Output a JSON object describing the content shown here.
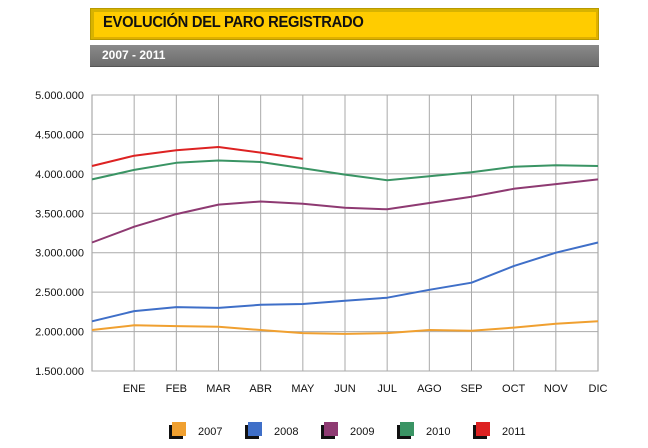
{
  "header": {
    "title": "EVOLUCIÓN DEL PARO REGISTRADO",
    "subtitle": "2007 - 2011"
  },
  "chart_data": {
    "type": "line",
    "title": "EVOLUCIÓN DEL PARO REGISTRADO",
    "subtitle": "2007 - 2011",
    "xlabel": "",
    "ylabel": "",
    "x_positions": 13,
    "categories": [
      "",
      "ENE",
      "FEB",
      "MAR",
      "ABR",
      "MAY",
      "JUN",
      "JUL",
      "AGO",
      "SEP",
      "OCT",
      "NOV",
      "DIC"
    ],
    "ylim": [
      1500000,
      5000000
    ],
    "yticks": [
      1500000,
      2000000,
      2500000,
      3000000,
      3500000,
      4000000,
      4500000,
      5000000
    ],
    "ytick_labels": [
      "1.500.000",
      "2.000.000",
      "2.500.000",
      "3.000.000",
      "3.500.000",
      "4.000.000",
      "4.500.000",
      "5.000.000"
    ],
    "grid": true,
    "legend": "bottom",
    "series": [
      {
        "name": "2007",
        "color": "#f0a030",
        "values": [
          2020000,
          2080000,
          2070000,
          2060000,
          2020000,
          1980000,
          1970000,
          1980000,
          2020000,
          2010000,
          2050000,
          2100000,
          2130000
        ]
      },
      {
        "name": "2008",
        "color": "#3f6fc8",
        "values": [
          2130000,
          2260000,
          2310000,
          2300000,
          2340000,
          2350000,
          2390000,
          2430000,
          2530000,
          2620000,
          2830000,
          3000000,
          3130000
        ]
      },
      {
        "name": "2009",
        "color": "#8e3a72",
        "values": [
          3130000,
          3330000,
          3490000,
          3610000,
          3650000,
          3620000,
          3570000,
          3550000,
          3630000,
          3710000,
          3810000,
          3870000,
          3930000
        ]
      },
      {
        "name": "2010",
        "color": "#3a9464",
        "values": [
          3930000,
          4050000,
          4140000,
          4170000,
          4150000,
          4070000,
          3990000,
          3920000,
          3970000,
          4020000,
          4090000,
          4110000,
          4100000
        ]
      },
      {
        "name": "2011",
        "color": "#dd2222",
        "values": [
          4100000,
          4230000,
          4300000,
          4340000,
          4270000,
          4190000,
          null,
          null,
          null,
          null,
          null,
          null,
          null
        ]
      }
    ]
  }
}
